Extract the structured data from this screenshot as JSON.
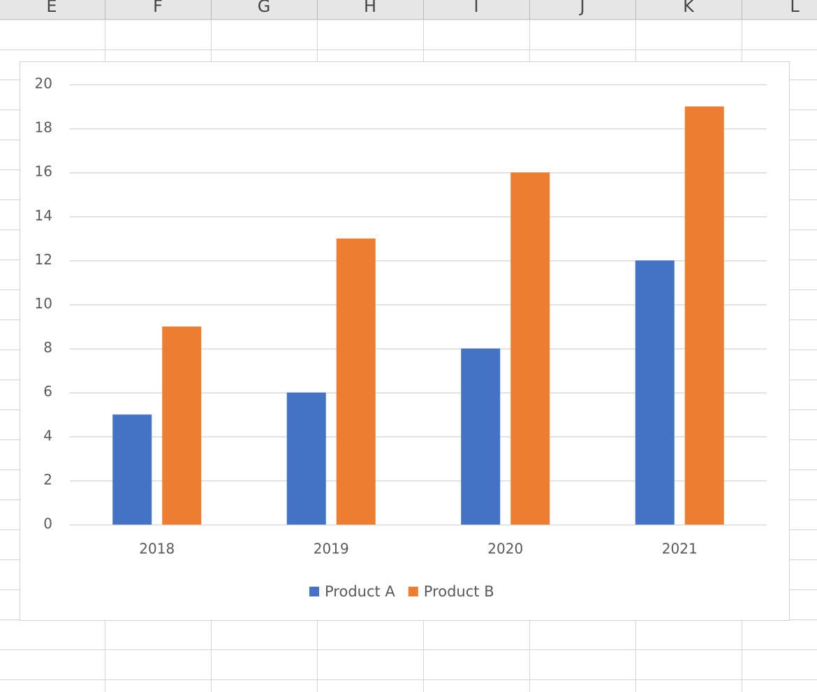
{
  "spreadsheet": {
    "columns": [
      "E",
      "F",
      "G",
      "H",
      "I",
      "J",
      "K",
      "L"
    ]
  },
  "chart_data": {
    "type": "bar",
    "categories": [
      "2018",
      "2019",
      "2020",
      "2021"
    ],
    "series": [
      {
        "name": "Product A",
        "color": "#4472c4",
        "values": [
          5,
          6,
          8,
          12
        ]
      },
      {
        "name": "Product B",
        "color": "#ed7d31",
        "values": [
          9,
          13,
          16,
          19
        ]
      }
    ],
    "ylim": [
      0,
      20
    ],
    "yticks": [
      0,
      2,
      4,
      6,
      8,
      10,
      12,
      14,
      16,
      18,
      20
    ],
    "grid": true,
    "legend": "bottom"
  }
}
